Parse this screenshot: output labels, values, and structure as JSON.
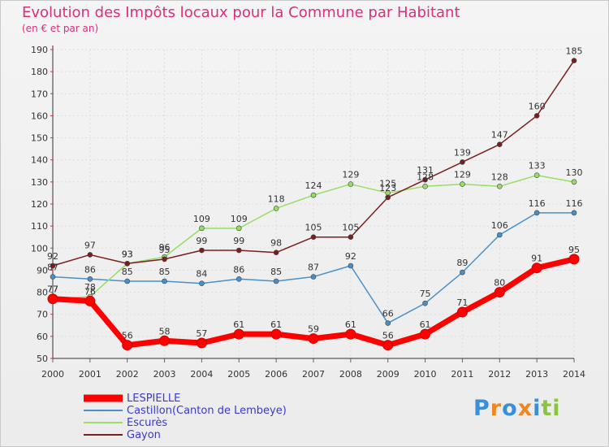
{
  "header": {
    "title": "Evolution des Impôts locaux pour la Commune par Habitant",
    "subtitle": "(en € et par an)"
  },
  "logo": {
    "text": "Proxiti",
    "colors": [
      "#3b8fd6",
      "#f0861e",
      "#3b8fd6",
      "#f0861e",
      "#3b8fd6",
      "#8bc53f",
      "#8bc53f"
    ]
  },
  "chart_data": {
    "type": "line",
    "x": [
      2000,
      2001,
      2002,
      2003,
      2004,
      2005,
      2006,
      2007,
      2008,
      2009,
      2010,
      2011,
      2012,
      2013,
      2014
    ],
    "ylim": [
      50,
      190
    ],
    "yticks": [
      50,
      60,
      70,
      80,
      90,
      100,
      110,
      120,
      130,
      140,
      150,
      160,
      170,
      180,
      190
    ],
    "grid": true,
    "legend_position": "bottom-left",
    "series": [
      {
        "name": "LESPIELLE",
        "color": "#ff0000",
        "values": [
          77,
          76,
          56,
          58,
          57,
          61,
          61,
          59,
          61,
          56,
          61,
          71,
          80,
          91,
          95
        ]
      },
      {
        "name": "Castillon(Canton de Lembeye)",
        "color": "#4a90c8",
        "values": [
          87,
          86,
          85,
          85,
          84,
          86,
          85,
          87,
          92,
          66,
          75,
          89,
          106,
          116,
          116
        ]
      },
      {
        "name": "Escurès",
        "color": "#99dd66",
        "values": [
          77,
          78,
          93,
          96,
          109,
          109,
          118,
          124,
          129,
          125,
          128,
          129,
          128,
          133,
          130
        ]
      },
      {
        "name": "Gayon",
        "color": "#7a1f1f",
        "values": [
          92,
          97,
          93,
          95,
          99,
          99,
          98,
          105,
          105,
          123,
          131,
          139,
          147,
          160,
          185
        ]
      }
    ]
  }
}
